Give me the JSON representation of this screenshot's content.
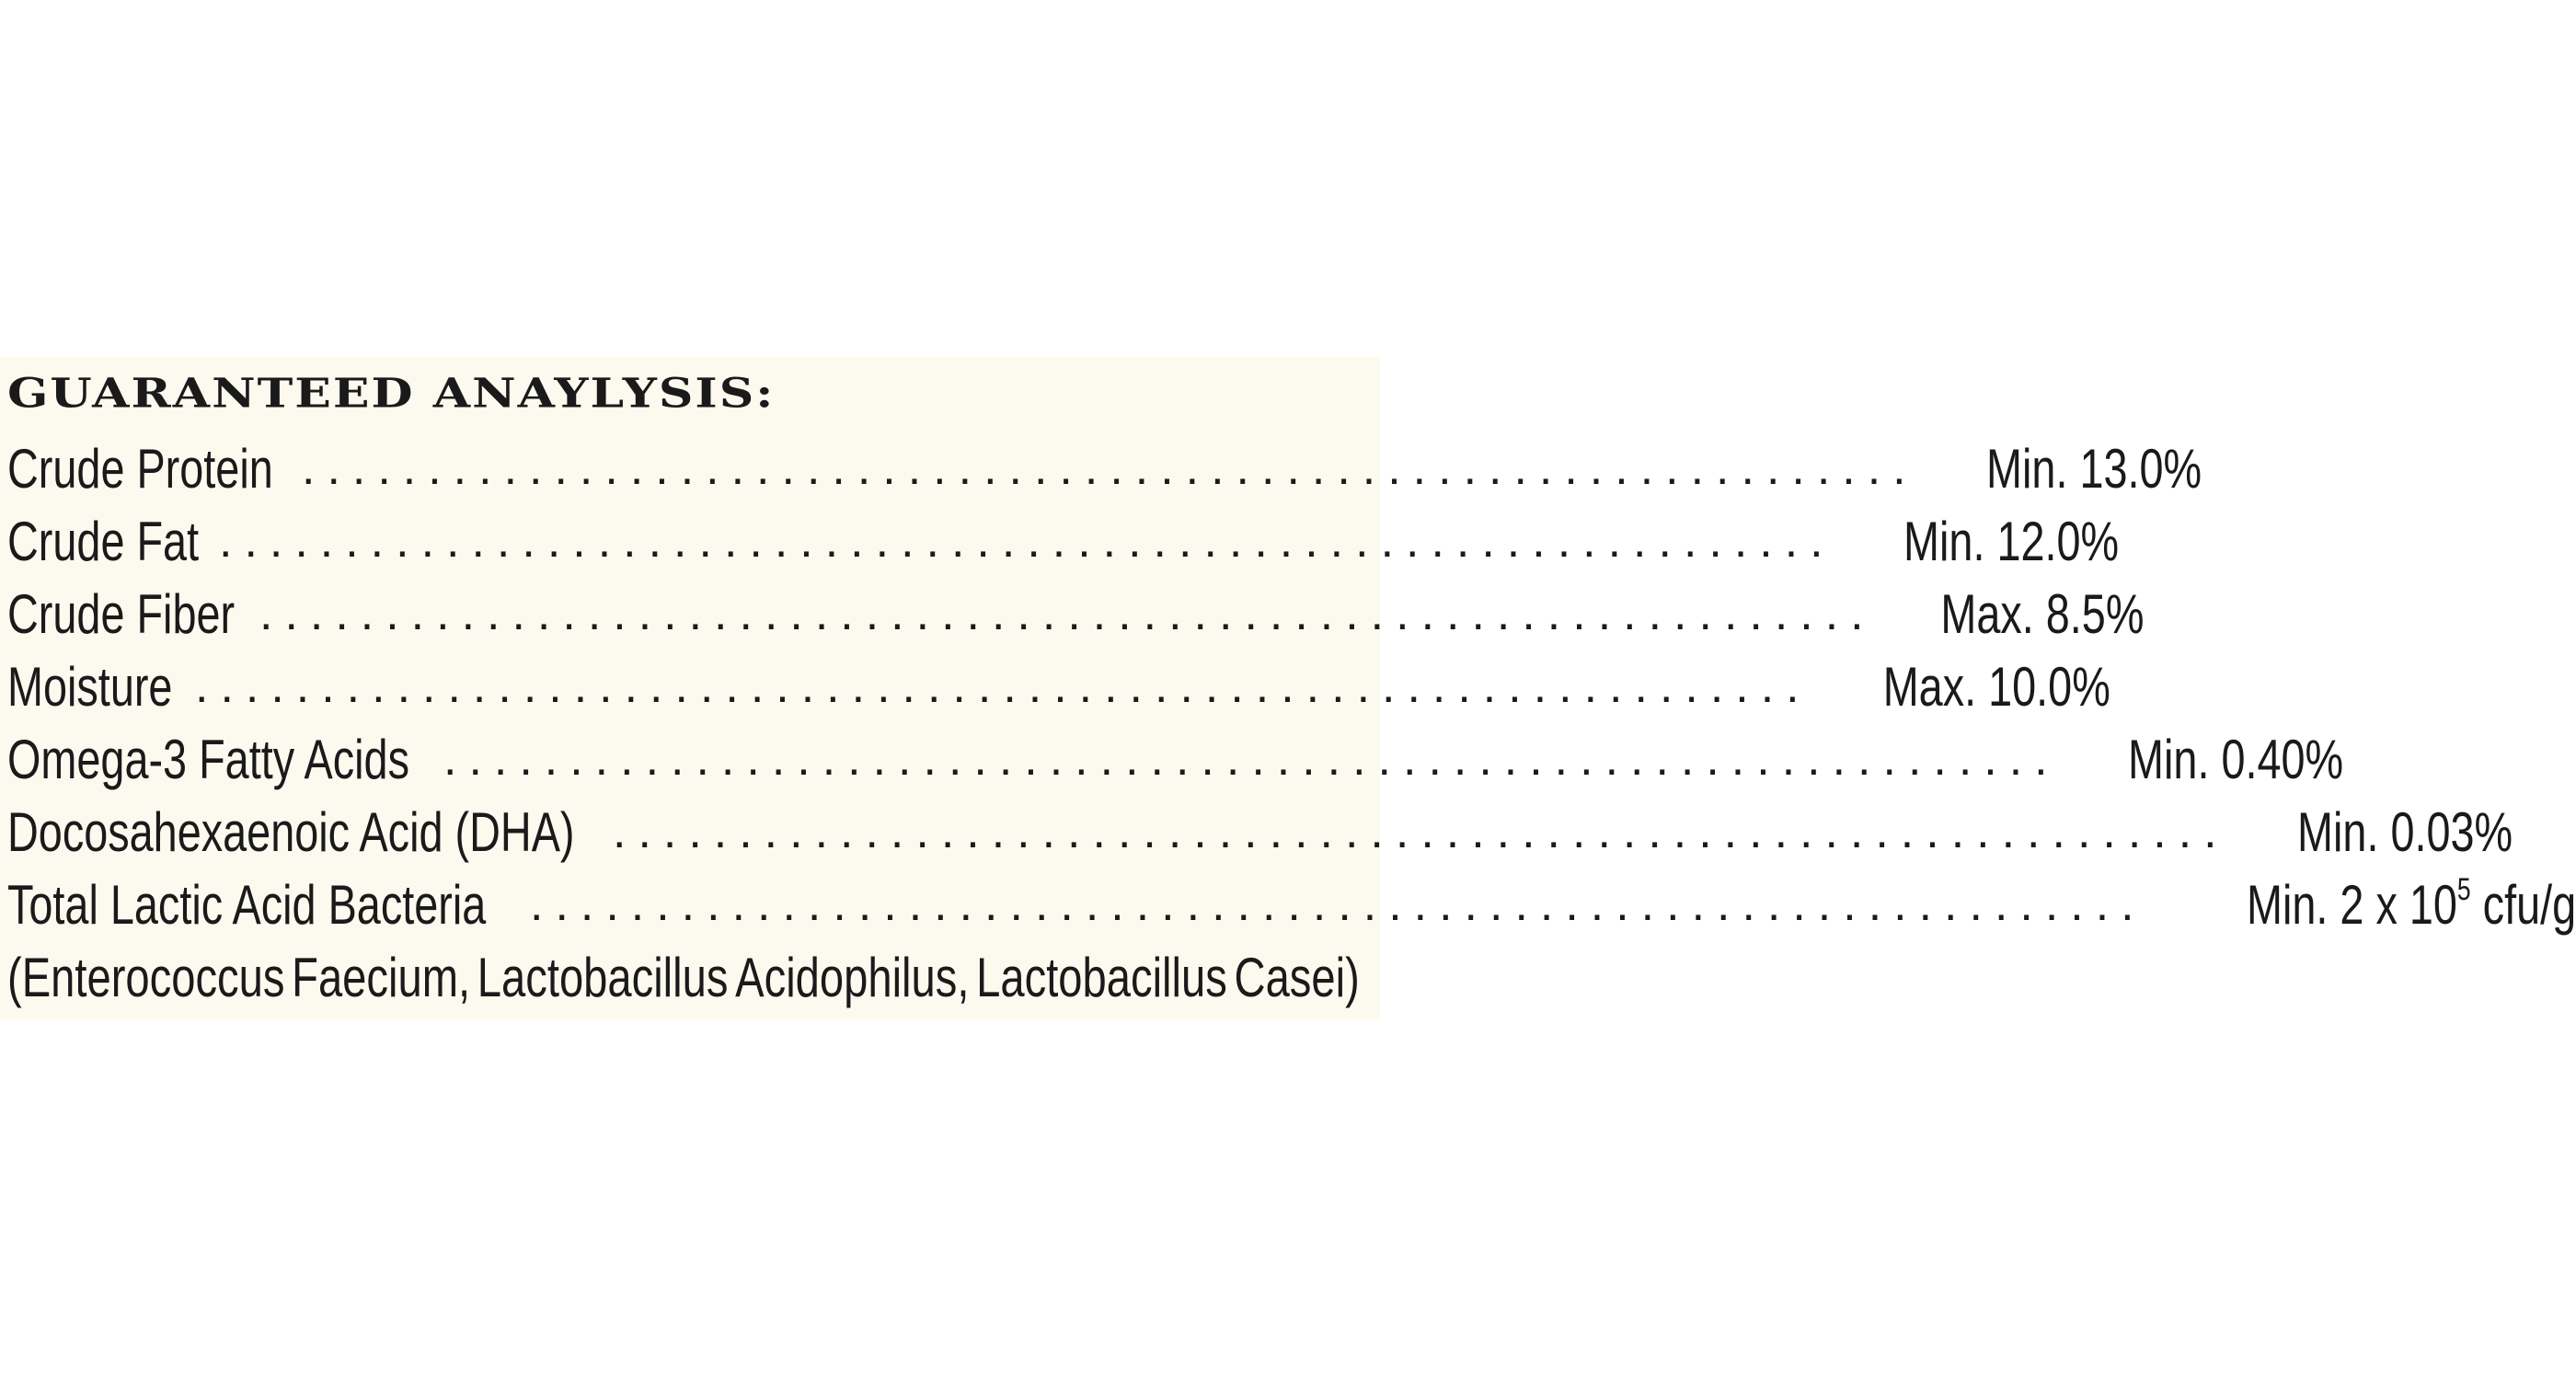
{
  "panel": {
    "heading": "GUARANTEED ANAYLYSIS:",
    "rows": [
      {
        "name": "Crude Protein",
        "value": "Min. 13.0%"
      },
      {
        "name": "Crude Fat",
        "value": "Min. 12.0%"
      },
      {
        "name": "Crude Fiber",
        "value": "Max. 8.5%"
      },
      {
        "name": "Moisture",
        "value": "Max. 10.0%"
      },
      {
        "name": "Omega-3 Fatty Acids",
        "value": "Min. 0.40%"
      },
      {
        "name": "Docosahexaenoic Acid (DHA)",
        "value": "Min. 0.03%"
      }
    ],
    "bacteria_row": {
      "name": "Total Lactic Acid Bacteria",
      "value_prefix": "Min. 2 x 10",
      "value_exponent": "5",
      "value_suffix": " cfu/g"
    },
    "footnote_words": [
      "(Enterococcus",
      "Faecium,",
      "Lactobacillus",
      "Acidophilus,",
      "Lactobacillus",
      "Casei)"
    ]
  }
}
